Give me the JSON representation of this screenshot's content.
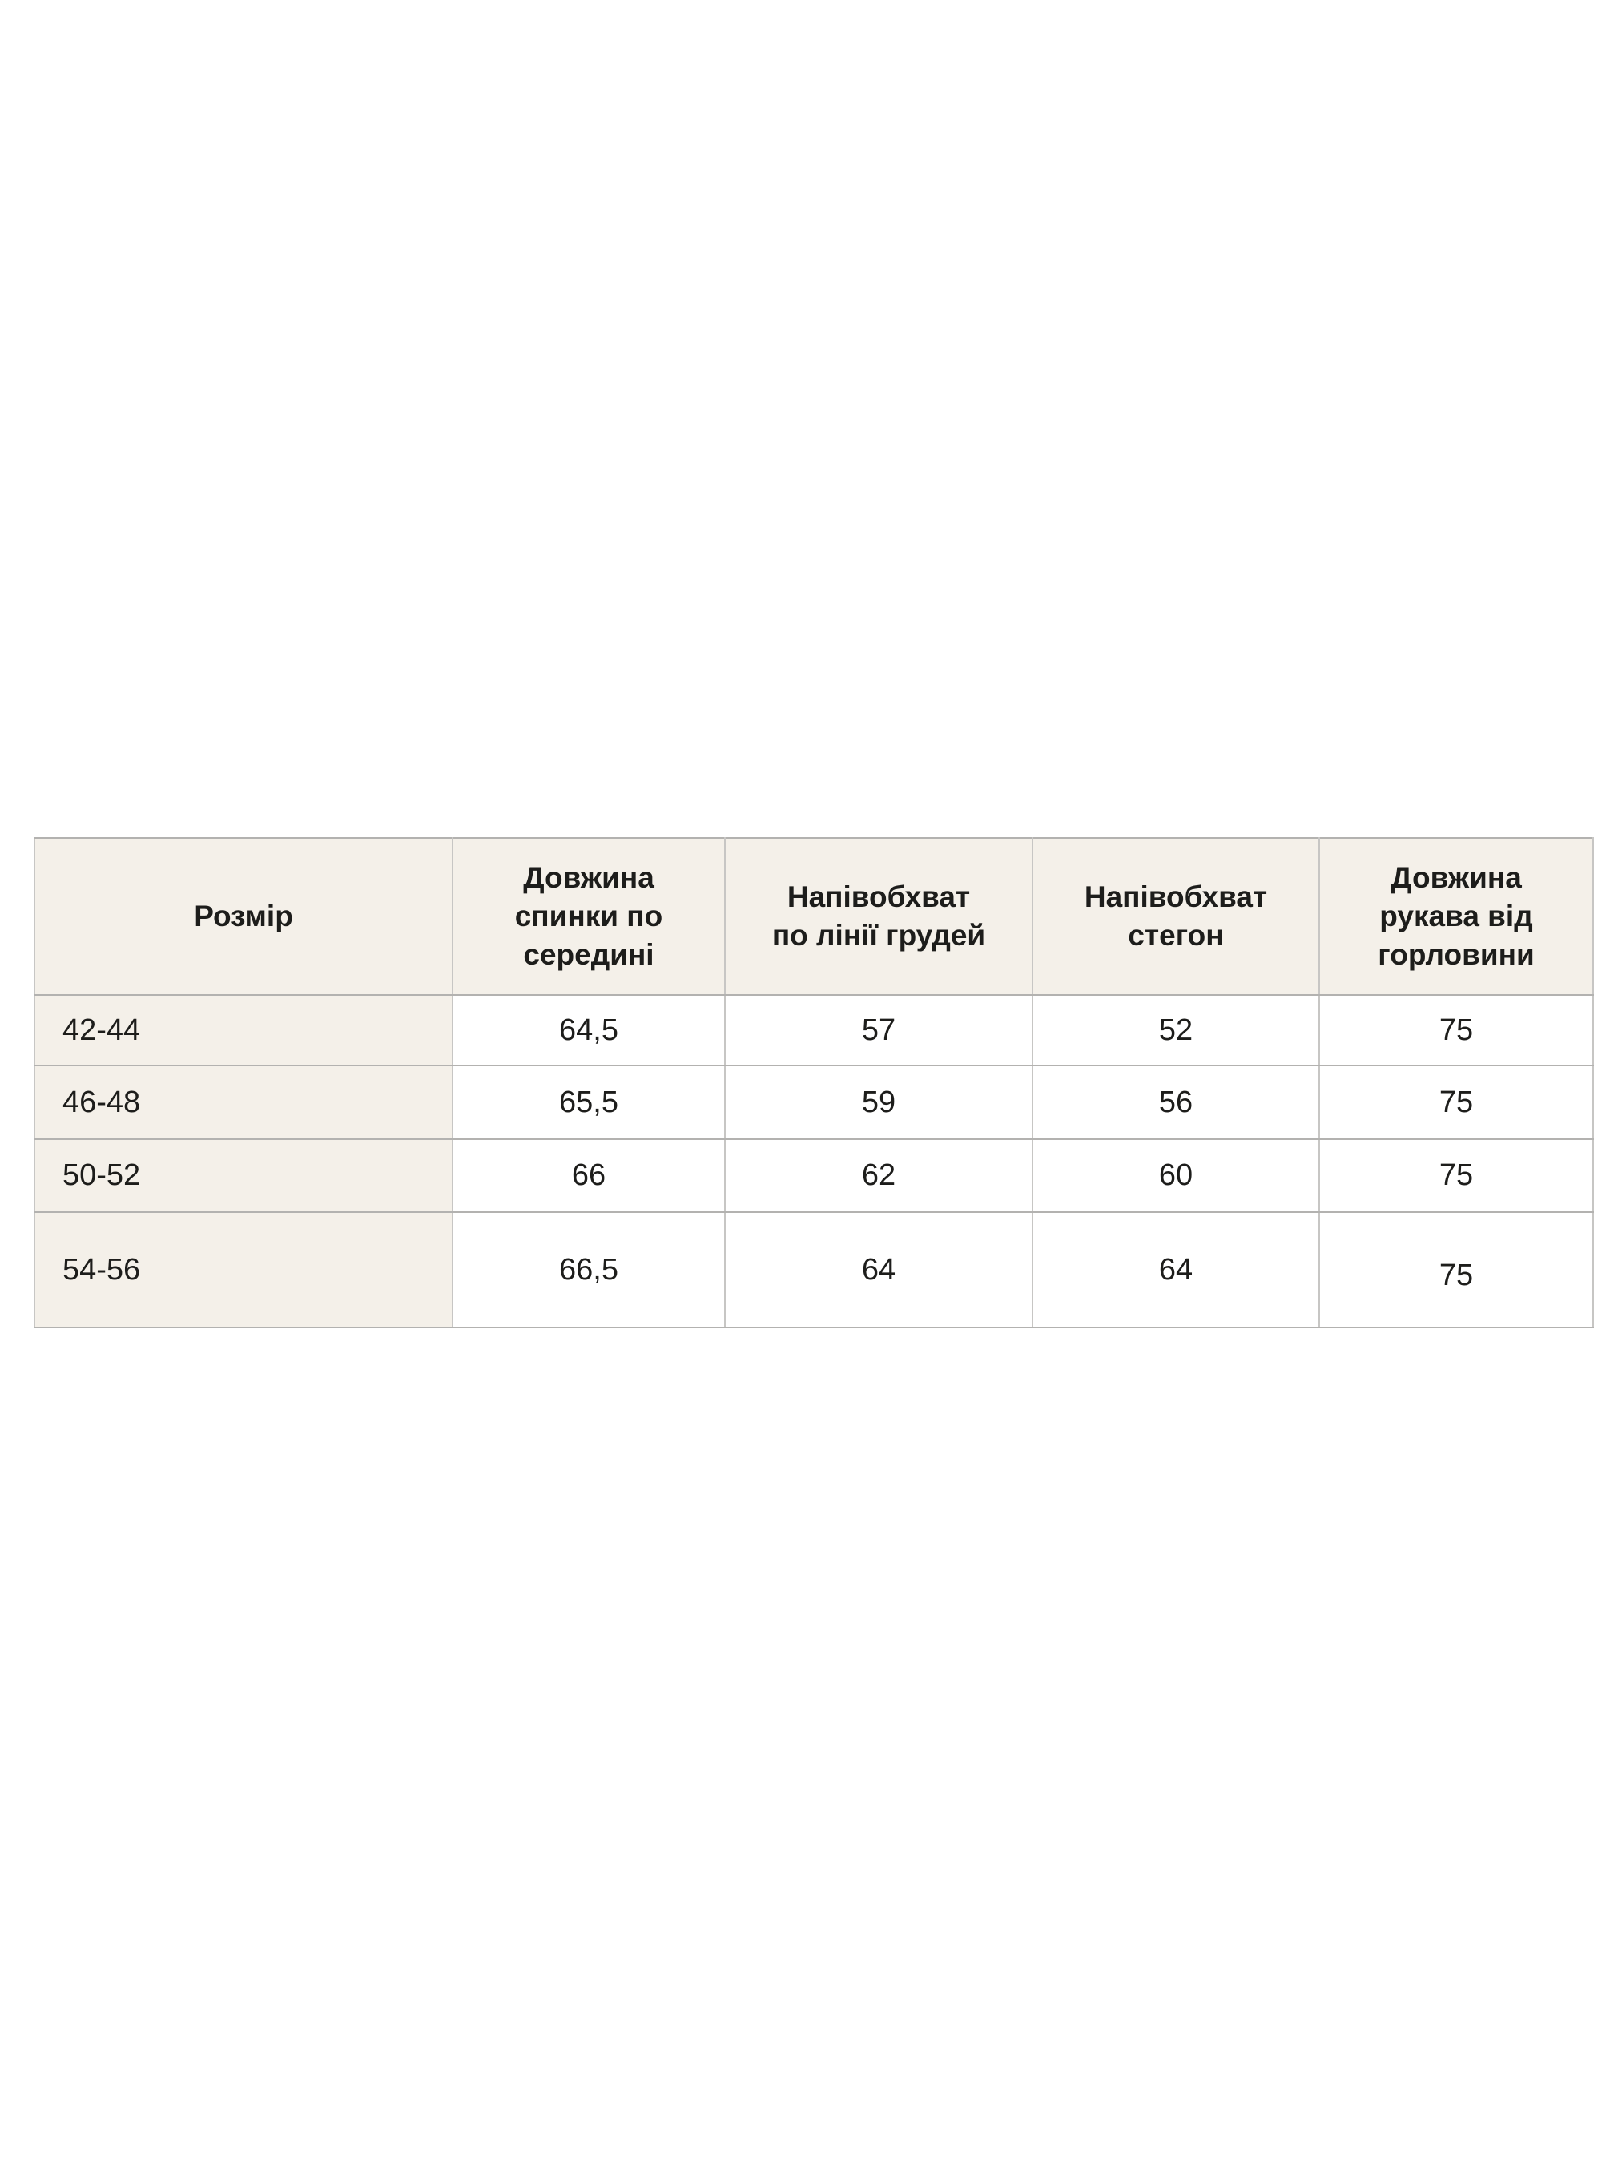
{
  "table": {
    "header_bg": "#f4f0e9",
    "row_label_bg": "#f4f0e9",
    "border_color_vertical": "#c7c6c4",
    "border_color_horizontal": "#b3b2b0",
    "text_color": "#1d1d1b",
    "columns": [
      {
        "label": "Розмір"
      },
      {
        "label": "Довжина\nспинки по\nсередині"
      },
      {
        "label": "Напівобхват\nпо лінії грудей"
      },
      {
        "label": "Напівобхват\nстегон"
      },
      {
        "label": "Довжина\nрукава від\nгорловини"
      }
    ],
    "rows": [
      {
        "size": "42-44",
        "back_length": "64,5",
        "chest_half_girth": "57",
        "hips_half_girth": "52",
        "sleeve_length": "75"
      },
      {
        "size": "46-48",
        "back_length": "65,5",
        "chest_half_girth": "59",
        "hips_half_girth": "56",
        "sleeve_length": "75"
      },
      {
        "size": "50-52",
        "back_length": "66",
        "chest_half_girth": "62",
        "hips_half_girth": "60",
        "sleeve_length": "75"
      },
      {
        "size": "54-56",
        "back_length": "66,5",
        "chest_half_girth": "64",
        "hips_half_girth": "64",
        "sleeve_length": "75"
      }
    ]
  }
}
